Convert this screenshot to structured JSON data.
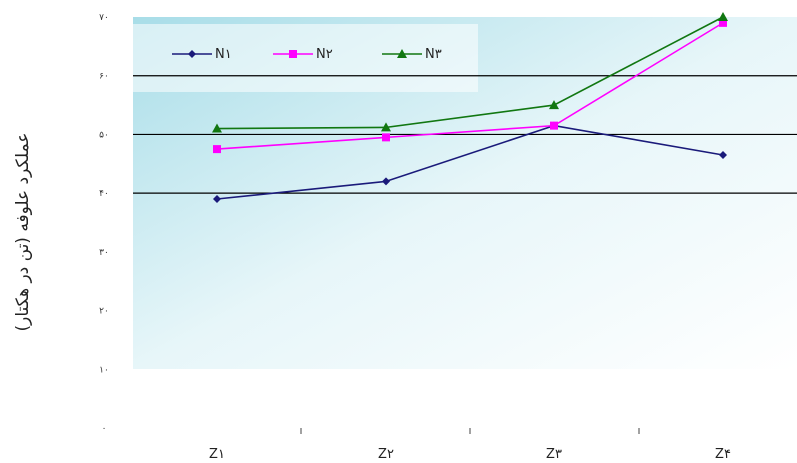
{
  "chart_data": {
    "type": "line",
    "categories": [
      "Z۱",
      "Z۲",
      "Z۳",
      "Z۴"
    ],
    "series": [
      {
        "name": "N۱",
        "values": [
          39,
          42,
          51.5,
          46.5
        ],
        "color": "#1a1a7a",
        "marker": "diamond"
      },
      {
        "name": "N۲",
        "values": [
          47.5,
          49.5,
          51.5,
          69
        ],
        "color": "#ff00ff",
        "marker": "square"
      },
      {
        "name": "N۳",
        "values": [
          51,
          51.2,
          55,
          70
        ],
        "color": "#117711",
        "marker": "triangle"
      }
    ],
    "ylim": [
      0,
      70
    ],
    "yticks": [
      "۰",
      "۱۰",
      "۲۰",
      "۳۰",
      "۴۰",
      "۵۰",
      "۶۰",
      "۷۰"
    ],
    "major_gridlines": [
      40,
      50,
      60
    ],
    "ylabel": "عملکرد علوفه (تن در هکتار)",
    "xlabel": "",
    "legend_position": "top"
  }
}
